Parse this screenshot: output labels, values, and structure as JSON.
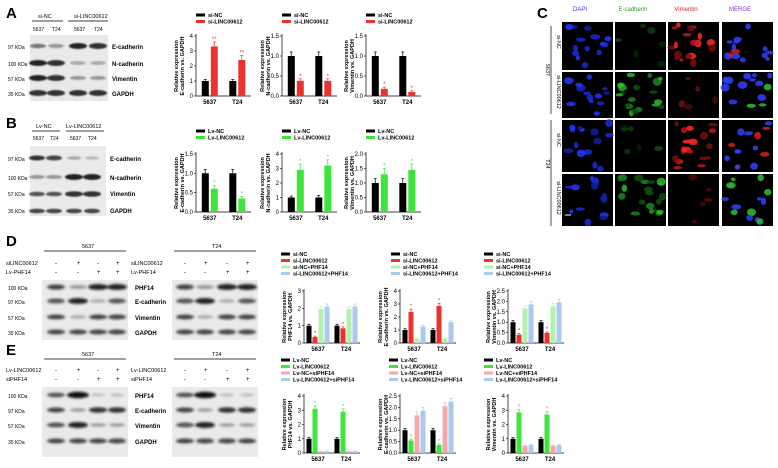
{
  "panels": {
    "A": "A",
    "B": "B",
    "C": "C",
    "D": "D",
    "E": "E"
  },
  "colors": {
    "black": "#000000",
    "red": "#e8332f",
    "green": "#3ee33b",
    "pink": "#f4a9a8",
    "lightgreen": "#b4f0ac",
    "lightblue": "#a9c9ef"
  },
  "blot_A": {
    "groups": [
      "si-NC",
      "si-LINC00612"
    ],
    "cells": [
      "5637",
      "T24",
      "5637",
      "T24"
    ],
    "rows": [
      {
        "kda": "97 KDa",
        "name": "E-cadherin"
      },
      {
        "kda": "100 KDa",
        "name": "N-cadherin"
      },
      {
        "kda": "57 KDa",
        "name": "Vimentin"
      },
      {
        "kda": "35 KDa",
        "name": "GAPDH"
      }
    ]
  },
  "blot_B": {
    "groups": [
      "Lv-NC",
      "Lv-LINC00612"
    ],
    "cells": [
      "5637",
      "T24",
      "5637",
      "T24"
    ],
    "rows": [
      {
        "kda": "97 KDa",
        "name": "E-cadherin"
      },
      {
        "kda": "100 KDa",
        "name": "N-cadherin"
      },
      {
        "kda": "57 KDa",
        "name": "Vimentin"
      },
      {
        "kda": "35 KDa",
        "name": "GAPDH"
      }
    ]
  },
  "blot_D": {
    "cells": [
      "5637",
      "T24"
    ],
    "treat_labels": [
      "siLINC00612",
      "Lv-PHF14"
    ],
    "row1": [
      "-",
      "+",
      "-",
      "+"
    ],
    "row2": [
      "-",
      "-",
      "+",
      "+"
    ],
    "rows": [
      {
        "kda": "100 KDa",
        "name": "PHF14"
      },
      {
        "kda": "97 KDa",
        "name": "E-cadherin"
      },
      {
        "kda": "57 KDa",
        "name": "Vimentin"
      },
      {
        "kda": "35 KDa",
        "name": "GAPDH"
      }
    ]
  },
  "blot_E": {
    "cells": [
      "5637",
      "T24"
    ],
    "treat_labels": [
      "Lv-LINC00612",
      "siPHF14"
    ],
    "row1": [
      "-",
      "+",
      "-",
      "+"
    ],
    "row2": [
      "-",
      "-",
      "+",
      "+"
    ],
    "rows": [
      {
        "kda": "100 KDa",
        "name": "PHF14"
      },
      {
        "kda": "97 KDa",
        "name": "E-cadherin"
      },
      {
        "kda": "57 KDa",
        "name": "Vimentin"
      },
      {
        "kda": "35 KDa",
        "name": "GAPDH"
      }
    ]
  },
  "if_panel": {
    "headers": [
      "DAPI",
      "E-cadherin",
      "Vimentin",
      "MERGE"
    ],
    "header_colors": [
      "#3a3af0",
      "#2aa02a",
      "#e02020",
      "#8a2be2"
    ],
    "cell_labels": [
      "5637",
      "T24"
    ],
    "row_labels": [
      "si-NC",
      "si-LINC00612",
      "si-NC",
      "si-LINC00612"
    ]
  },
  "chart_data": [
    {
      "id": "A1",
      "type": "bar",
      "categories": [
        "5637",
        "T24"
      ],
      "series": [
        {
          "name": "si-NC",
          "values": [
            1.0,
            1.0
          ],
          "err": [
            0.1,
            0.1
          ]
        },
        {
          "name": "si-LINC00612",
          "values": [
            3.3,
            2.4
          ],
          "err": [
            0.3,
            0.3
          ]
        }
      ],
      "ylabel_lines": [
        "Relative expression",
        "E-cadherin vs. GAPDH"
      ],
      "ylim": [
        0,
        4
      ],
      "yticks": [
        0,
        1,
        2,
        3,
        4
      ],
      "sig": [
        [],
        [
          "**",
          "**"
        ]
      ]
    },
    {
      "id": "A2",
      "type": "bar",
      "categories": [
        "5637",
        "T24"
      ],
      "series": [
        {
          "name": "si-NC",
          "values": [
            1.0,
            1.0
          ],
          "err": [
            0.1,
            0.1
          ]
        },
        {
          "name": "si-LINC00612",
          "values": [
            0.38,
            0.38
          ],
          "err": [
            0.05,
            0.05
          ]
        }
      ],
      "ylabel_lines": [
        "Relative expression",
        "N-cadherin vs. GAPDH"
      ],
      "ylim": [
        0,
        1.5
      ],
      "yticks": [
        0,
        0.5,
        1.0,
        1.5
      ],
      "sig": [
        [],
        [
          "*",
          "*"
        ]
      ]
    },
    {
      "id": "A3",
      "type": "bar",
      "categories": [
        "5637",
        "T24"
      ],
      "series": [
        {
          "name": "si-NC",
          "values": [
            1.0,
            1.0
          ],
          "err": [
            0.1,
            0.1
          ]
        },
        {
          "name": "si-LINC00612",
          "values": [
            0.18,
            0.1
          ],
          "err": [
            0.04,
            0.03
          ]
        }
      ],
      "ylabel_lines": [
        "Relative expression",
        "Vimentin vs. GAPDH"
      ],
      "ylim": [
        0,
        1.5
      ],
      "yticks": [
        0,
        0.5,
        1.0,
        1.5
      ],
      "sig": [
        [],
        [
          "*",
          "*"
        ]
      ]
    },
    {
      "id": "B1",
      "type": "bar",
      "categories": [
        "5637",
        "T24"
      ],
      "series": [
        {
          "name": "Lv-NC",
          "values": [
            1.0,
            1.0
          ],
          "err": [
            0.1,
            0.1
          ]
        },
        {
          "name": "Lv-LINC00612",
          "values": [
            0.6,
            0.35
          ],
          "err": [
            0.08,
            0.05
          ]
        }
      ],
      "ylabel_lines": [
        "Relative expression",
        "E-cadherin vs. GAPDH"
      ],
      "ylim": [
        0,
        1.5
      ],
      "yticks": [
        0,
        0.5,
        1.0,
        1.5
      ],
      "sig": [
        [],
        [
          "*",
          "*"
        ]
      ]
    },
    {
      "id": "B2",
      "type": "bar",
      "categories": [
        "5637",
        "T24"
      ],
      "series": [
        {
          "name": "Lv-NC",
          "values": [
            1.0,
            1.0
          ],
          "err": [
            0.1,
            0.15
          ]
        },
        {
          "name": "Lv-LINC00612",
          "values": [
            2.9,
            3.2
          ],
          "err": [
            0.4,
            0.4
          ]
        }
      ],
      "ylabel_lines": [
        "Relative expression",
        "N-cadherin vs. GAPDH"
      ],
      "ylim": [
        0,
        4
      ],
      "yticks": [
        0,
        1,
        2,
        3,
        4
      ],
      "sig": [
        [],
        [
          "*",
          "*"
        ]
      ]
    },
    {
      "id": "B3",
      "type": "bar",
      "categories": [
        "5637",
        "T24"
      ],
      "series": [
        {
          "name": "Lv-NC",
          "values": [
            1.0,
            1.0
          ],
          "err": [
            0.15,
            0.15
          ]
        },
        {
          "name": "Lv-LINC00612",
          "values": [
            1.3,
            1.45
          ],
          "err": [
            0.2,
            0.2
          ]
        }
      ],
      "ylabel_lines": [
        "Relative expression",
        "Vimentin vs. GAPDH"
      ],
      "ylim": [
        0,
        2.0
      ],
      "yticks": [
        0,
        0.5,
        1.0,
        1.5,
        2.0
      ],
      "sig": [
        [],
        [
          "*",
          "*"
        ]
      ]
    },
    {
      "id": "D1",
      "type": "bar",
      "categories": [
        "5637",
        "T24"
      ],
      "series": [
        {
          "name": "si-NC",
          "values": [
            1.0,
            1.0
          ],
          "err": [
            0.08,
            0.08
          ]
        },
        {
          "name": "si-LINC00612",
          "values": [
            0.35,
            0.85
          ],
          "err": [
            0.05,
            0.08
          ]
        },
        {
          "name": "si-NC+PHF14",
          "values": [
            1.95,
            1.95
          ],
          "err": [
            0.15,
            0.15
          ]
        },
        {
          "name": "si-LINC00612+PHF14",
          "values": [
            2.1,
            2.1
          ],
          "err": [
            0.15,
            0.15
          ]
        }
      ],
      "ylabel_lines": [
        "Relative expression",
        "PHF14 vs. GAPDH"
      ],
      "ylim": [
        0,
        3
      ],
      "yticks": [
        0,
        1,
        2,
        3
      ],
      "sig": [
        [],
        [
          "*",
          "*"
        ],
        [],
        []
      ]
    },
    {
      "id": "D2",
      "type": "bar",
      "categories": [
        "5637",
        "T24"
      ],
      "series": [
        {
          "name": "si-NC",
          "values": [
            1.0,
            1.0
          ],
          "err": [
            0.1,
            0.1
          ]
        },
        {
          "name": "si-LINC00612",
          "values": [
            2.4,
            2.85
          ],
          "err": [
            0.2,
            0.2
          ]
        },
        {
          "name": "si-NC+PHF14",
          "values": [
            0.3,
            0.35
          ],
          "err": [
            0.05,
            0.05
          ]
        },
        {
          "name": "si-LINC00612+PHF14",
          "values": [
            1.25,
            1.6
          ],
          "err": [
            0.1,
            0.1
          ]
        }
      ],
      "ylabel_lines": [
        "Relative expression",
        "E-cadherin vs. GAPDH"
      ],
      "ylim": [
        0,
        4
      ],
      "yticks": [
        0,
        1,
        2,
        3,
        4
      ],
      "sig": [
        [],
        [
          "*",
          "*"
        ],
        [],
        []
      ]
    },
    {
      "id": "D3",
      "type": "bar",
      "categories": [
        "5637",
        "T24"
      ],
      "series": [
        {
          "name": "si-NC",
          "values": [
            1.0,
            1.0
          ],
          "err": [
            0.08,
            0.08
          ]
        },
        {
          "name": "si-LINC00612",
          "values": [
            0.4,
            0.48
          ],
          "err": [
            0.05,
            0.05
          ]
        },
        {
          "name": "si-NC+PHF14",
          "values": [
            1.65,
            1.75
          ],
          "err": [
            0.15,
            0.15
          ]
        },
        {
          "name": "si-LINC00612+PHF14",
          "values": [
            1.85,
            1.95
          ],
          "err": [
            0.15,
            0.15
          ]
        }
      ],
      "ylabel_lines": [
        "Relative expression",
        "Vimentin vs. GAPDH"
      ],
      "ylim": [
        0,
        2.5
      ],
      "yticks": [
        0,
        0.5,
        1.0,
        1.5,
        2.0,
        2.5
      ],
      "sig": [
        [],
        [
          "*",
          "*"
        ],
        [],
        []
      ]
    },
    {
      "id": "E1",
      "type": "bar",
      "categories": [
        "5637",
        "T24"
      ],
      "series": [
        {
          "name": "Lv-NC",
          "values": [
            1.0,
            1.0
          ],
          "err": [
            0.08,
            0.08
          ]
        },
        {
          "name": "Lv-LINC00612",
          "values": [
            3.1,
            2.9
          ],
          "err": [
            0.2,
            0.2
          ]
        },
        {
          "name": "Lv-NC+siPHF14",
          "values": [
            0.1,
            0.1
          ],
          "err": [
            0.02,
            0.02
          ]
        },
        {
          "name": "Lv-LINC00612+siPHF14",
          "values": [
            0.12,
            0.12
          ],
          "err": [
            0.02,
            0.02
          ]
        }
      ],
      "ylabel_lines": [
        "Relative expression",
        "PHF14 vs. GAPDH"
      ],
      "ylim": [
        0,
        4
      ],
      "yticks": [
        0,
        1,
        2,
        3,
        4
      ],
      "sig": [
        [],
        [
          "*",
          "*"
        ],
        [],
        []
      ]
    },
    {
      "id": "E2",
      "type": "bar",
      "categories": [
        "5637",
        "T24"
      ],
      "series": [
        {
          "name": "Lv-NC",
          "values": [
            1.0,
            1.0
          ],
          "err": [
            0.08,
            0.08
          ]
        },
        {
          "name": "Lv-LINC00612",
          "values": [
            0.55,
            0.35
          ],
          "err": [
            0.05,
            0.05
          ]
        },
        {
          "name": "Lv-NC+siPHF14",
          "values": [
            1.65,
            2.05
          ],
          "err": [
            0.15,
            0.15
          ]
        },
        {
          "name": "Lv-LINC00612+siPHF14",
          "values": [
            1.85,
            2.25
          ],
          "err": [
            0.15,
            0.15
          ]
        }
      ],
      "ylabel_lines": [
        "Relative expression",
        "E-cadherin vs. GAPDH"
      ],
      "ylim": [
        0,
        2.5
      ],
      "yticks": [
        0,
        0.5,
        1.0,
        1.5,
        2.0,
        2.5
      ],
      "sig": [
        [],
        [
          "*",
          "*"
        ],
        [],
        []
      ]
    },
    {
      "id": "E3",
      "type": "bar",
      "categories": [
        "5637",
        "T24"
      ],
      "series": [
        {
          "name": "Lv-NC",
          "values": [
            1.0,
            1.0
          ],
          "err": [
            0.08,
            0.08
          ]
        },
        {
          "name": "Lv-LINC00612",
          "values": [
            2.85,
            2.7
          ],
          "err": [
            0.2,
            0.2
          ]
        },
        {
          "name": "Lv-NC+siPHF14",
          "values": [
            0.5,
            0.5
          ],
          "err": [
            0.05,
            0.05
          ]
        },
        {
          "name": "Lv-LINC00612+siPHF14",
          "values": [
            0.55,
            0.55
          ],
          "err": [
            0.05,
            0.05
          ]
        }
      ],
      "ylabel_lines": [
        "Relative expression",
        "Vimentin vs. GAPDH"
      ],
      "ylim": [
        0,
        4
      ],
      "yticks": [
        0,
        1,
        2,
        3,
        4
      ],
      "sig": [
        [],
        [
          "*",
          "*"
        ],
        [],
        []
      ]
    }
  ]
}
